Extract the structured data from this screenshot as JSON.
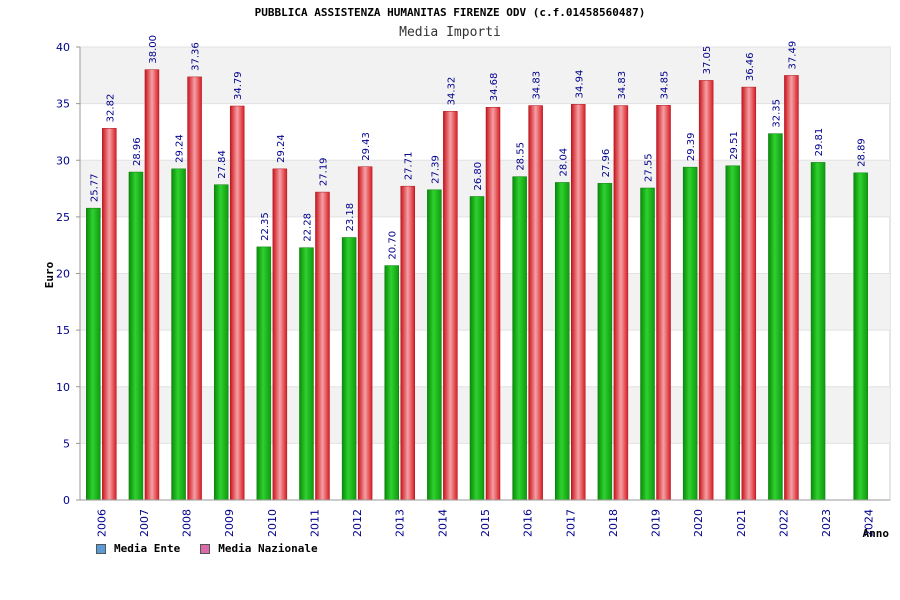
{
  "title": "PUBBLICA ASSISTENZA HUMANITAS FIRENZE ODV (c.f.01458560487)",
  "subtitle": "Media Importi",
  "chart_data": {
    "type": "bar",
    "title": "Media Importi",
    "xlabel": "Anno",
    "ylabel": "Euro",
    "ylim": [
      0,
      40
    ],
    "yticks": [
      0,
      5,
      10,
      15,
      20,
      25,
      30,
      35,
      40
    ],
    "grid": true,
    "legend_position": "bottom-left",
    "categories": [
      "2006",
      "2007",
      "2008",
      "2009",
      "2010",
      "2011",
      "2012",
      "2013",
      "2014",
      "2015",
      "2016",
      "2017",
      "2018",
      "2019",
      "2020",
      "2021",
      "2022",
      "2023",
      "2024"
    ],
    "series": [
      {
        "name": "Media Ente",
        "color": "#22c422",
        "legend_color": "#5b9bd5",
        "values": [
          25.77,
          28.96,
          29.24,
          27.84,
          22.35,
          22.28,
          23.18,
          20.7,
          27.39,
          26.8,
          28.55,
          28.04,
          27.96,
          27.55,
          29.39,
          29.51,
          32.35,
          29.81,
          28.89
        ],
        "labels": [
          "25.77",
          "28.96",
          "29.24",
          "27.84",
          "22.35",
          "22.28",
          "23.18",
          "20.70",
          "27.39",
          "26.80",
          "28.55",
          "28.04",
          "27.96",
          "27.55",
          "29.39",
          "29.51",
          "32.35",
          "29.81",
          "28.89"
        ]
      },
      {
        "name": "Media Nazionale",
        "color": "#e8242b",
        "legend_color": "#d96ba8",
        "values": [
          32.82,
          38.0,
          37.36,
          34.79,
          29.24,
          27.19,
          29.43,
          27.71,
          34.32,
          34.68,
          34.83,
          34.94,
          34.83,
          34.85,
          37.05,
          36.46,
          37.49,
          null,
          null
        ],
        "labels": [
          "32.82",
          "38.00",
          "37.36",
          "34.79",
          "29.24",
          "27.19",
          "29.43",
          "27.71",
          "34.32",
          "34.68",
          "34.83",
          "34.94",
          "34.83",
          "34.85",
          "37.05",
          "36.46",
          "37.49",
          "",
          ""
        ]
      }
    ]
  }
}
